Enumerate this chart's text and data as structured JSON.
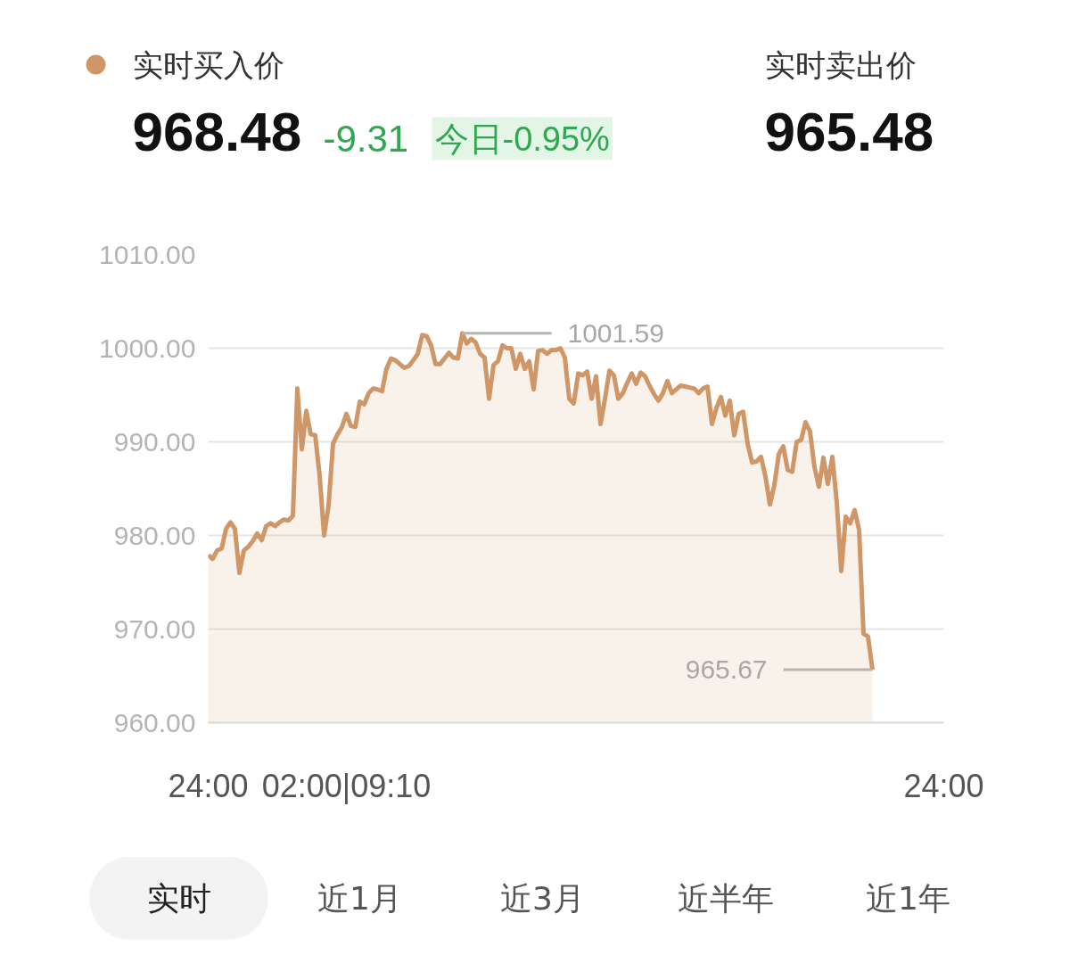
{
  "chart_data": {
    "type": "area",
    "categories": [
      "24:00",
      null,
      null,
      null,
      null,
      null,
      null,
      null,
      null,
      null,
      null,
      null,
      null,
      null,
      null,
      null,
      null,
      null,
      null,
      null,
      null,
      null,
      null,
      null,
      null,
      null,
      null,
      null,
      null,
      null,
      null,
      "02:00|09:10",
      null,
      null,
      null,
      null,
      null,
      null,
      null,
      null,
      null,
      null,
      null,
      null,
      null,
      null,
      null,
      null,
      null,
      null,
      null,
      null,
      null,
      null,
      null,
      null,
      null,
      null,
      null,
      null,
      null,
      null,
      null,
      null,
      null,
      null,
      null,
      null,
      null,
      null,
      null,
      null,
      null,
      null,
      null,
      null,
      null,
      null,
      null,
      null,
      null,
      null,
      null,
      null,
      null,
      null,
      null,
      null,
      null,
      null,
      null,
      null,
      null,
      null,
      null,
      null,
      null,
      null,
      null,
      null,
      null,
      null,
      null,
      null,
      null,
      null,
      null,
      null,
      null,
      null,
      null,
      null,
      null,
      null,
      null,
      null,
      null,
      null,
      null,
      null,
      null,
      null,
      null,
      null,
      null,
      null,
      null,
      null,
      null,
      null,
      null,
      null,
      null,
      null,
      null,
      null,
      null,
      null,
      null,
      null,
      null,
      null,
      null,
      null,
      null,
      null,
      null,
      null,
      null,
      null,
      null,
      null,
      null,
      null,
      null,
      null,
      null,
      null,
      null,
      null,
      null,
      null,
      null,
      null,
      null,
      "24:00"
    ],
    "series": [
      {
        "name": "实时买入价",
        "color": "#cf9767",
        "values": [
          977.9,
          977.5,
          978.4,
          978.6,
          980.7,
          981.4,
          980.7,
          976.0,
          978.4,
          978.8,
          979.4,
          980.2,
          979.5,
          981.0,
          981.3,
          981.0,
          981.4,
          981.7,
          981.6,
          982.1,
          995.7,
          989.2,
          993.3,
          990.8,
          990.7,
          986.4,
          980.0,
          983.2,
          989.8,
          990.8,
          991.6,
          993.0,
          991.7,
          991.6,
          994.3,
          994.0,
          995.2,
          995.7,
          995.6,
          995.4,
          997.8,
          998.9,
          998.7,
          998.3,
          997.9,
          998.1,
          998.7,
          999.4,
          1001.4,
          1001.3,
          1000.3,
          998.3,
          998.3,
          998.9,
          999.5,
          999.0,
          998.9,
          1001.59,
          1000.5,
          1001.0,
          1000.6,
          999.4,
          999.0,
          994.6,
          998.2,
          998.6,
          1000.3,
          1000.0,
          1000.0,
          997.8,
          999.4,
          997.8,
          998.6,
          995.6,
          999.7,
          999.8,
          999.4,
          999.8,
          999.8,
          1000.0,
          999.0,
          994.6,
          994.1,
          997.3,
          997.1,
          997.5,
          994.6,
          997.0,
          991.9,
          994.6,
          997.6,
          997.1,
          994.6,
          995.2,
          996.3,
          997.3,
          996.2,
          997.4,
          997.0,
          996.0,
          995.1,
          994.4,
          995.2,
          996.5,
          995.2,
          995.6,
          996.0,
          995.9,
          995.8,
          995.7,
          995.2,
          995.7,
          995.9,
          991.9,
          993.6,
          994.8,
          992.8,
          994.4,
          990.7,
          993.0,
          993.2,
          989.8,
          987.8,
          987.9,
          988.4,
          986.3,
          983.3,
          985.4,
          988.7,
          989.5,
          987.0,
          986.8,
          990.0,
          990.2,
          992.1,
          991.1,
          987.3,
          985.2,
          988.3,
          985.5,
          988.4,
          983.5,
          976.2,
          982.0,
          981.3,
          982.7,
          980.6,
          969.5,
          969.2,
          965.67,
          null,
          null,
          null,
          null,
          null,
          null,
          null,
          null,
          null,
          null,
          null,
          null,
          null,
          null,
          null,
          null
        ],
        "value_labels": [
          null,
          null,
          null,
          null,
          null,
          null,
          null,
          null,
          null,
          null,
          null,
          null,
          null,
          null,
          null,
          null,
          null,
          null,
          null,
          null,
          null,
          null,
          null,
          null,
          null,
          null,
          null,
          null,
          null,
          null,
          null,
          null,
          null,
          null,
          null,
          null,
          null,
          null,
          null,
          null,
          null,
          null,
          null,
          null,
          null,
          null,
          null,
          null,
          null,
          null,
          null,
          null,
          null,
          null,
          null,
          null,
          null,
          "1001.59",
          null,
          null,
          null,
          null,
          null,
          null,
          null,
          null,
          null,
          null,
          null,
          null,
          null,
          null,
          null,
          null,
          null,
          null,
          null,
          null,
          null,
          null,
          null,
          null,
          null,
          null,
          null,
          null,
          null,
          null,
          null,
          null,
          null,
          null,
          null,
          null,
          null,
          null,
          null,
          null,
          null,
          null,
          null,
          null,
          null,
          null,
          null,
          null,
          null,
          null,
          null,
          null,
          null,
          null,
          null,
          null,
          null,
          null,
          null,
          null,
          null,
          null,
          null,
          null,
          null,
          null,
          null,
          null,
          null,
          null,
          null,
          null,
          null,
          null,
          null,
          null,
          null,
          null,
          null,
          null,
          null,
          null,
          null,
          null,
          null,
          null,
          null,
          null,
          null,
          null,
          null,
          "965.67",
          null,
          null,
          null,
          null,
          null,
          null,
          null,
          null,
          null,
          null,
          null,
          null,
          null,
          null,
          null,
          null
        ]
      }
    ],
    "ylim": [
      960,
      1010
    ],
    "yticks": [
      {
        "value": 960,
        "label": "960.00"
      },
      {
        "value": 970,
        "label": "970.00"
      },
      {
        "value": 980,
        "label": "980.00"
      },
      {
        "value": 990,
        "label": "990.00"
      },
      {
        "value": 1000,
        "label": "1000.00"
      },
      {
        "value": 1010,
        "label": "1010.00"
      }
    ],
    "grid": "y",
    "legend": "top left",
    "annotations": [
      "968.48",
      "-9.31",
      "今日-0.95%",
      "实时卖出价",
      "965.48",
      "实时",
      "近1月",
      "近3月",
      "近半年",
      "近1年"
    ]
  }
}
